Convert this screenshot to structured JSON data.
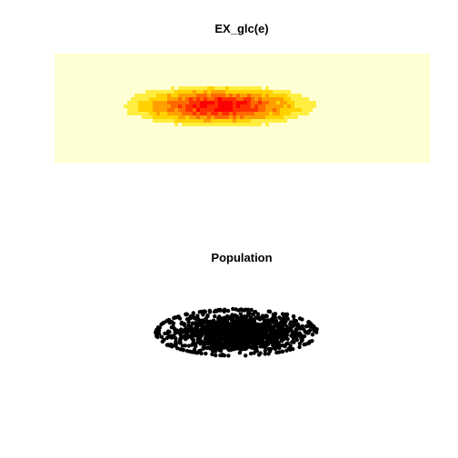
{
  "chart_data": [
    {
      "type": "heatmap",
      "title": "EX_glc(e)",
      "xlabel": "",
      "ylabel": "",
      "colors": {
        "background": "#ffffd4",
        "low": "#ffe000",
        "mid": "#ff8000",
        "high": "#ff0000"
      },
      "density": {
        "center": [
          0.44,
          0.48
        ],
        "spread": [
          0.28,
          0.18
        ],
        "levels": [
          {
            "threshold": 0.92,
            "color": "#ff0000"
          },
          {
            "threshold": 0.75,
            "color": "#ff3000"
          },
          {
            "threshold": 0.58,
            "color": "#ff6a00"
          },
          {
            "threshold": 0.42,
            "color": "#ffa000"
          },
          {
            "threshold": 0.28,
            "color": "#ffd200"
          },
          {
            "threshold": 0.16,
            "color": "#ffee40"
          }
        ]
      },
      "grid": false,
      "legend": "none"
    },
    {
      "type": "scatter",
      "title": "Population",
      "xlabel": "",
      "ylabel": "",
      "point_color": "#000000",
      "distribution": {
        "center": [
          0.5,
          0.5
        ],
        "spread": [
          0.35,
          0.18
        ]
      },
      "grid": false,
      "legend": "none"
    }
  ]
}
